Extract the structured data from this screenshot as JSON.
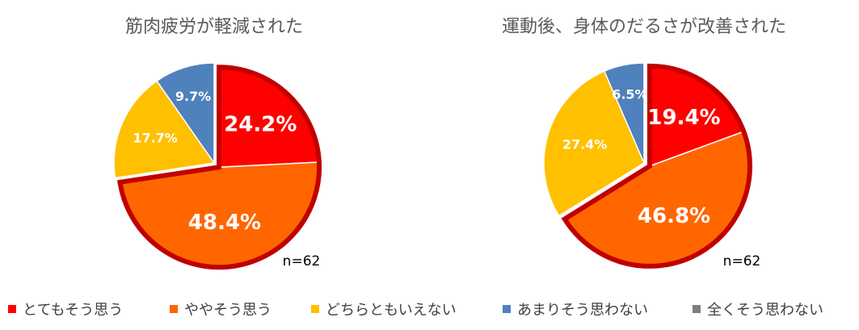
{
  "chart_data": [
    {
      "type": "pie",
      "title": "筋肉疲労が軽減された",
      "note": "n=62",
      "categories": [
        "とてもそう思う",
        "ややそう思う",
        "どちらともいえない",
        "あまりそう思わない",
        "全くそう思わない"
      ],
      "values": [
        24.2,
        48.4,
        17.7,
        9.7,
        0
      ],
      "labels": [
        "24.2%",
        "48.4%",
        "17.7%",
        "9.7%",
        ""
      ],
      "highlight": [
        0,
        1
      ]
    },
    {
      "type": "pie",
      "title": "運動後、身体のだるさが改善された",
      "note": "n=62",
      "categories": [
        "とてもそう思う",
        "ややそう思う",
        "どちらともいえない",
        "あまりそう思わない",
        "全くそう思わない"
      ],
      "values": [
        19.4,
        46.8,
        27.4,
        6.5,
        0
      ],
      "labels": [
        "19.4%",
        "46.8%",
        "27.4%",
        "6.5%",
        ""
      ],
      "highlight": [
        0,
        1
      ]
    }
  ],
  "colors": [
    "#ff0000",
    "#ff6600",
    "#ffc000",
    "#4f81bd",
    "#7f7f7f"
  ],
  "highlight_color": "#c00000",
  "legend": {
    "placement": "bottom",
    "items": [
      {
        "label": "とてもそう思う",
        "color": "#ff0000"
      },
      {
        "label": "ややそう思う",
        "color": "#ff6600"
      },
      {
        "label": "どちらともいえない",
        "color": "#ffc000"
      },
      {
        "label": "あまりそう思わない",
        "color": "#4f81bd"
      },
      {
        "label": "全くそう思わない",
        "color": "#7f7f7f"
      }
    ]
  }
}
